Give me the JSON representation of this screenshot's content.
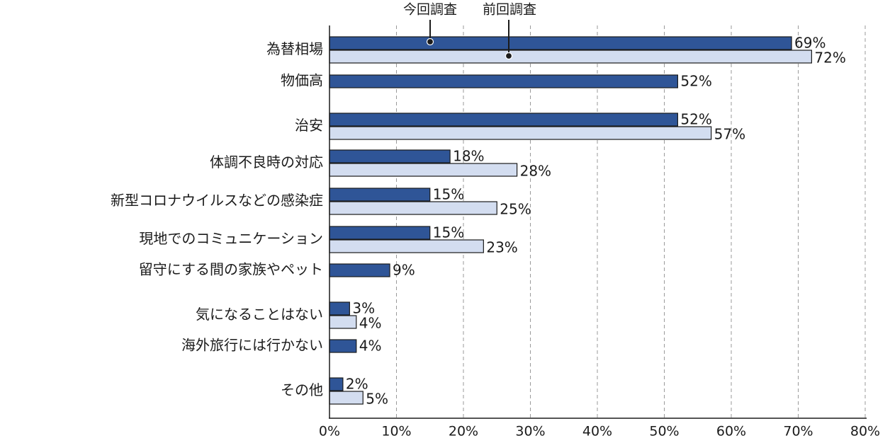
{
  "chart_data": {
    "type": "bar",
    "orientation": "horizontal",
    "categories": [
      "為替相場",
      "物価高",
      "治安",
      "体調不良時の対応",
      "新型コロナウイルスなどの感染症",
      "現地でのコミュニケーション",
      "留守にする間の家族やペット",
      "気になることはない",
      "海外旅行には行かない",
      "その他"
    ],
    "series": [
      {
        "name": "今回調査",
        "color": "#2f5597",
        "values": [
          69,
          52,
          52,
          18,
          15,
          15,
          9,
          3,
          4,
          2
        ],
        "labels": [
          "69%",
          "52%",
          "52%",
          "18%",
          "15%",
          "15%",
          "9%",
          "3%",
          "4%",
          "2%"
        ]
      },
      {
        "name": "前回調査",
        "color": "#d3ddf0",
        "values": [
          72,
          null,
          57,
          28,
          25,
          23,
          null,
          4,
          null,
          5
        ],
        "labels": [
          "72%",
          null,
          "57%",
          "28%",
          "25%",
          "23%",
          null,
          "4%",
          null,
          "5%"
        ]
      }
    ],
    "xlim": [
      0,
      80
    ],
    "xticks": [
      "0%",
      "10%",
      "20%",
      "30%",
      "40%",
      "50%",
      "60%",
      "70%",
      "80%"
    ],
    "grid": true,
    "legend": "top-callouts"
  }
}
